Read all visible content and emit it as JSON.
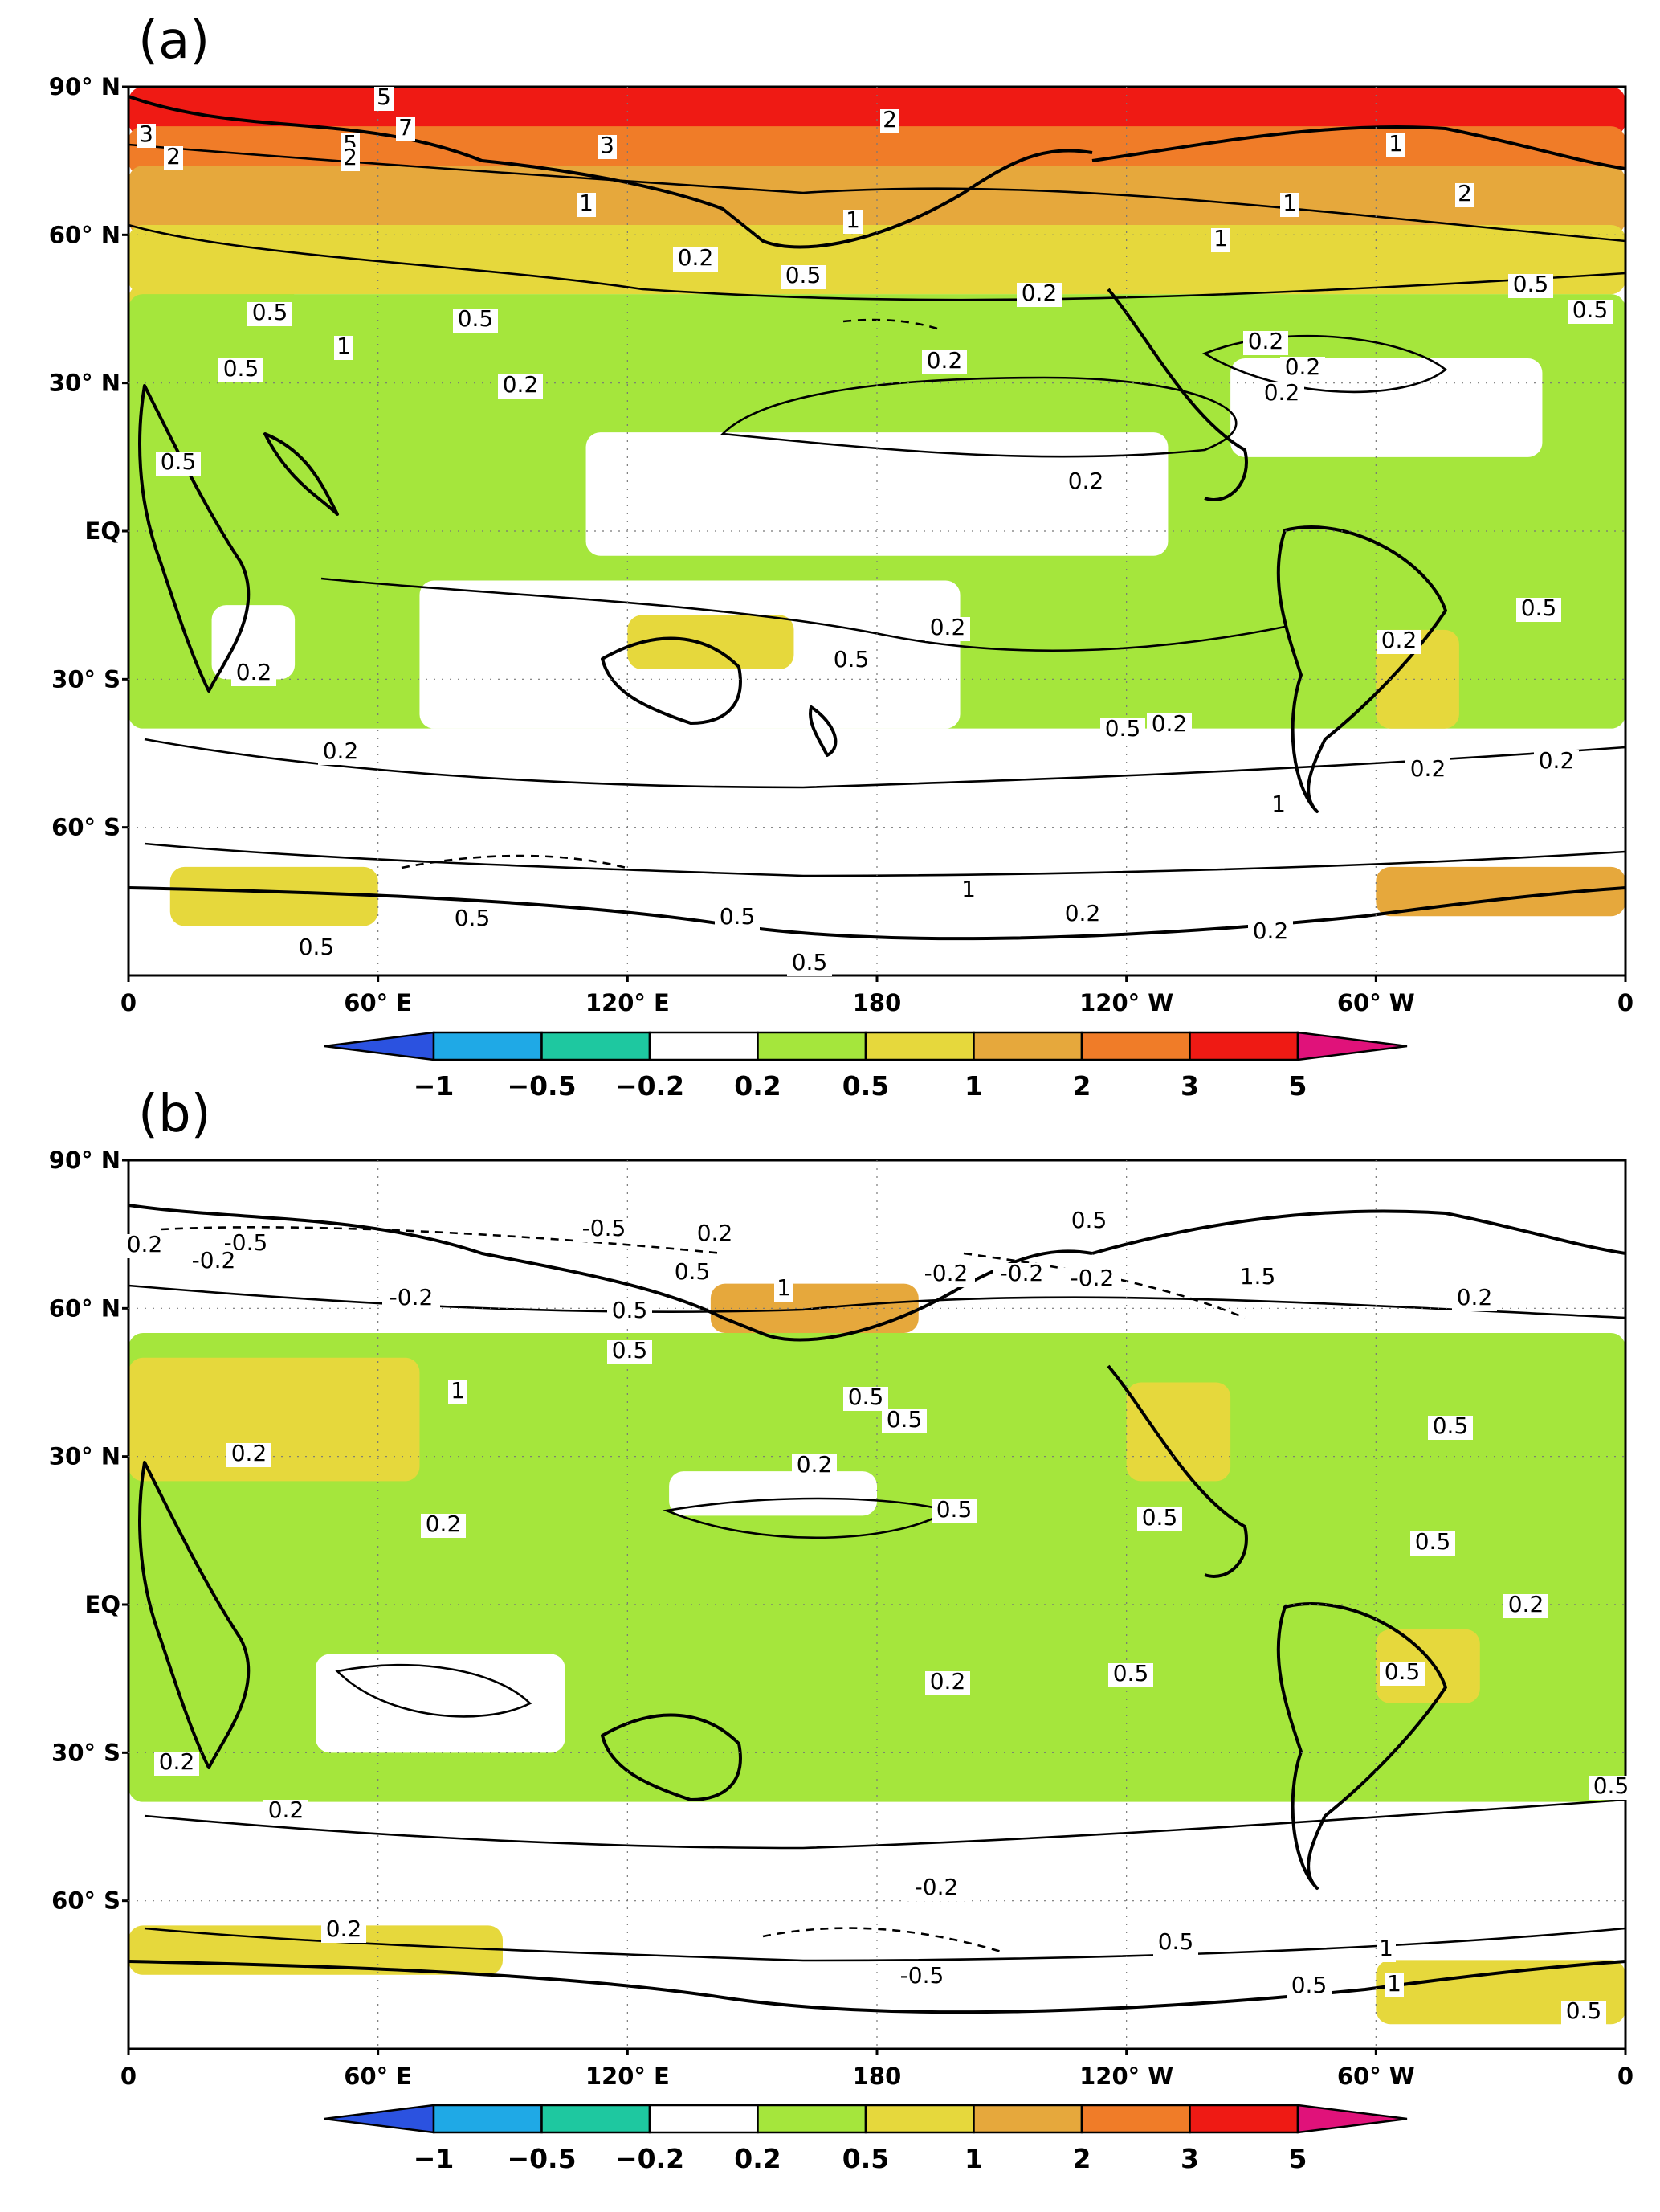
{
  "panels": [
    {
      "id": "a",
      "label": "(a)",
      "lat_labels": [
        "90° N",
        "60° N",
        "30° N",
        "EQ",
        "30° S",
        "60° S"
      ],
      "lon_labels": [
        "0",
        "60° E",
        "120° E",
        "180",
        "120° W",
        "60° W",
        "0"
      ],
      "fill_regions": [
        {
          "level": "3-5",
          "lon": [
            0,
            360
          ],
          "lat": [
            80,
            90
          ]
        },
        {
          "level": "2-3",
          "lon": [
            0,
            360
          ],
          "lat": [
            72,
            82
          ]
        },
        {
          "level": "1-2",
          "lon": [
            0,
            360
          ],
          "lat": [
            60,
            74
          ]
        },
        {
          "level": "0.5-1",
          "lon": [
            0,
            360
          ],
          "lat": [
            48,
            62
          ]
        },
        {
          "level": "0.5-1",
          "lon": [
            0,
            40
          ],
          "lat": [
            20,
            50
          ]
        },
        {
          "level": "0.2-0.5",
          "lon": [
            0,
            360
          ],
          "lat": [
            -40,
            48
          ]
        },
        {
          "level": "-0.2-0.2",
          "lon": [
            20,
            40
          ],
          "lat": [
            -30,
            -15
          ]
        },
        {
          "level": "-0.2-0.2",
          "lon": [
            70,
            200
          ],
          "lat": [
            -40,
            -10
          ]
        },
        {
          "level": "-0.2-0.2",
          "lon": [
            0,
            360
          ],
          "lat": [
            -65,
            -40
          ]
        },
        {
          "level": "0.5-1",
          "lon": [
            120,
            160
          ],
          "lat": [
            -28,
            -17
          ]
        },
        {
          "level": "0.5-1",
          "lon": [
            300,
            320
          ],
          "lat": [
            -40,
            -20
          ]
        },
        {
          "level": "-0.2-0.2",
          "lon": [
            110,
            250
          ],
          "lat": [
            -5,
            20
          ]
        },
        {
          "level": "-0.2-0.2",
          "lon": [
            265,
            340
          ],
          "lat": [
            15,
            35
          ]
        },
        {
          "level": "-0.2-0.2",
          "lon": [
            0,
            360
          ],
          "lat": [
            -90,
            -65
          ]
        },
        {
          "level": "0.5-1",
          "lon": [
            10,
            60
          ],
          "lat": [
            -80,
            -68
          ]
        },
        {
          "level": "1-2",
          "lon": [
            300,
            360
          ],
          "lat": [
            -78,
            -68
          ]
        }
      ],
      "contour_labels": [
        "5",
        "7",
        "5",
        "3",
        "2",
        "3",
        "2",
        "2",
        "1",
        "1",
        "1",
        "1",
        "2",
        "1",
        "0.5",
        "0.2",
        "0.5",
        "0.5",
        "0.2",
        "0.5",
        "0.2",
        "0.2",
        "0.2",
        "1",
        "0.5",
        "0.5",
        "0.2",
        "0.2",
        "0.2",
        "0.5",
        "0.2",
        "0.2",
        "0.5",
        "0.2",
        "0.5",
        "0.2",
        "0.2",
        "0.5",
        "0.2",
        "0.2",
        "1",
        "0.5",
        "0.2",
        "0.5",
        "0.5",
        "1",
        "0.5",
        "0.2"
      ]
    },
    {
      "id": "b",
      "label": "(b)",
      "lat_labels": [
        "90° N",
        "60° N",
        "30° N",
        "EQ",
        "30° S",
        "60° S"
      ],
      "lon_labels": [
        "0",
        "60° E",
        "120° E",
        "180",
        "120° W",
        "60° W",
        "0"
      ],
      "fill_regions": [
        {
          "level": "-0.2-0.2",
          "lon": [
            0,
            360
          ],
          "lat": [
            55,
            90
          ]
        },
        {
          "level": "0.2-0.5",
          "lon": [
            0,
            360
          ],
          "lat": [
            -40,
            55
          ]
        },
        {
          "level": "0.5-1",
          "lon": [
            0,
            70
          ],
          "lat": [
            25,
            50
          ]
        },
        {
          "level": "1-2",
          "lon": [
            140,
            190
          ],
          "lat": [
            55,
            65
          ]
        },
        {
          "level": "0.5-1",
          "lon": [
            240,
            265
          ],
          "lat": [
            25,
            45
          ]
        },
        {
          "level": "-0.2-0.2",
          "lon": [
            130,
            180
          ],
          "lat": [
            18,
            27
          ]
        },
        {
          "level": "-0.2-0.2",
          "lon": [
            45,
            105
          ],
          "lat": [
            -30,
            -10
          ]
        },
        {
          "level": "0.5-1",
          "lon": [
            300,
            325
          ],
          "lat": [
            -20,
            -5
          ]
        },
        {
          "level": "-0.2-0.2",
          "lon": [
            0,
            360
          ],
          "lat": [
            -68,
            -40
          ]
        },
        {
          "level": "0.5-1",
          "lon": [
            0,
            90
          ],
          "lat": [
            -75,
            -65
          ]
        },
        {
          "level": "-0.2-0.2",
          "lon": [
            0,
            360
          ],
          "lat": [
            -90,
            -75
          ]
        },
        {
          "level": "0.5-1",
          "lon": [
            300,
            360
          ],
          "lat": [
            -85,
            -72
          ]
        }
      ],
      "contour_labels": [
        "0.2",
        "-0.5",
        "-0.2",
        "-0.2",
        "-0.5",
        "0.2",
        "0.5",
        "-0.2",
        "-0.2",
        "-0.2",
        "0.5",
        "1.5",
        "0.2",
        "1",
        "0.5",
        "1",
        "0.5",
        "0.5",
        "0.5",
        "0.2",
        "0.5",
        "0.5",
        "0.5",
        "0.2",
        "0.2",
        "0.5",
        "0.2",
        "0.2",
        "0.5",
        "0.2",
        "0.5",
        "0.5",
        "0.2",
        "-0.2",
        "-0.5",
        "0.5",
        "1",
        "1",
        "0.5",
        "0.2",
        "0.5"
      ]
    }
  ],
  "colorbar": {
    "ticks": [
      "−1",
      "−0.5",
      "−0.2",
      "0.2",
      "0.5",
      "1",
      "2",
      "3",
      "5"
    ],
    "colors": [
      "#2b52e0",
      "#1fa9e6",
      "#1ec8a0",
      "#ffffff",
      "#a5e63c",
      "#e6d83c",
      "#e6a83c",
      "#f07c28",
      "#ef1a14",
      "#e0127a"
    ],
    "level_colors": {
      "-0.2-0.2": "#ffffff",
      "0.2-0.5": "#a5e63c",
      "0.5-1": "#e6d83c",
      "1-2": "#e6a83c",
      "2-3": "#f07c28",
      "3-5": "#ef1a14",
      "5+": "#e0127a"
    }
  }
}
